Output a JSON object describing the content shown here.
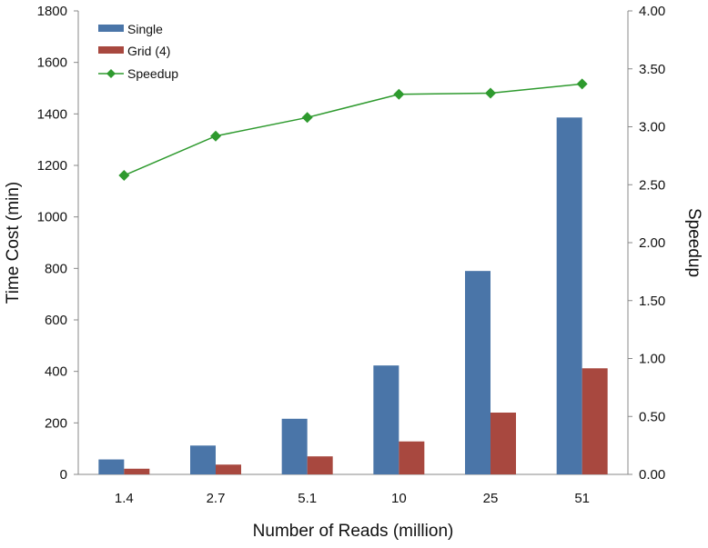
{
  "chart_data": {
    "type": "bar",
    "categories": [
      "1.4",
      "2.7",
      "5.1",
      "10",
      "25",
      "51"
    ],
    "xlabel": "Number of Reads (million)",
    "ylabel": "Time Cost (min)",
    "y2label": "Speedup",
    "ylim": [
      0,
      1800
    ],
    "y2lim": [
      0,
      4
    ],
    "yticks": [
      "0",
      "200",
      "400",
      "600",
      "800",
      "1000",
      "1200",
      "1400",
      "1600",
      "1800"
    ],
    "y2ticks": [
      "0.00",
      "0.50",
      "1.00",
      "1.50",
      "2.00",
      "2.50",
      "3.00",
      "3.50",
      "4.00"
    ],
    "grid": false,
    "legend_position": "top-left",
    "series": [
      {
        "name": "Single",
        "type": "bar",
        "axis": "left",
        "color": "#4a75a8",
        "values": [
          58,
          112,
          216,
          423,
          790,
          1386
        ]
      },
      {
        "name": "Grid (4)",
        "type": "bar",
        "axis": "left",
        "color": "#a8483f",
        "values": [
          22,
          38,
          70,
          128,
          240,
          412
        ]
      },
      {
        "name": "Speedup",
        "type": "line",
        "axis": "right",
        "color": "#2e9a2e",
        "marker": "diamond",
        "values": [
          2.58,
          2.92,
          3.08,
          3.28,
          3.29,
          3.37
        ]
      }
    ]
  }
}
